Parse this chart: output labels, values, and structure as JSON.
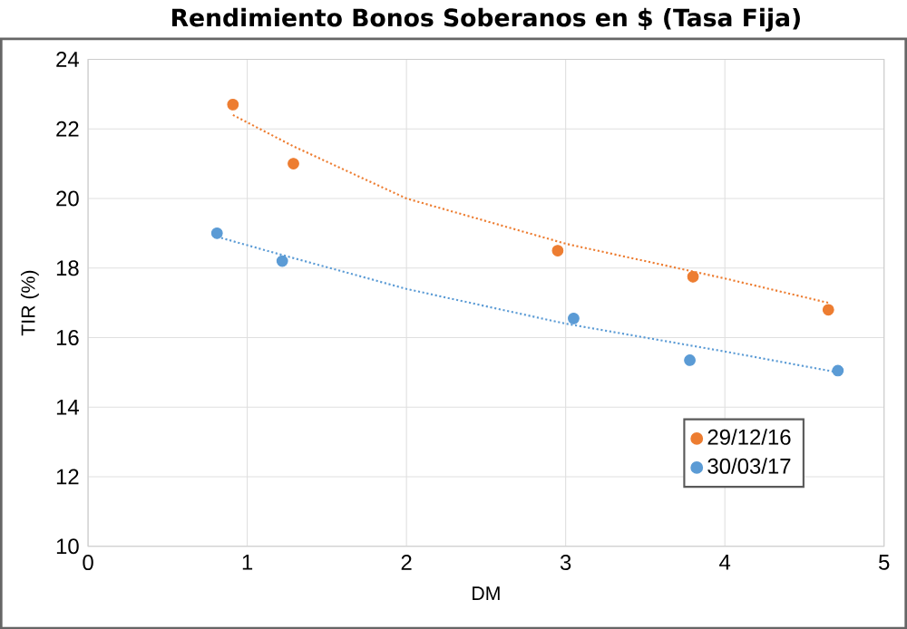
{
  "chart_data": {
    "type": "scatter",
    "title": "Rendimiento Bonos Soberanos en $ (Tasa Fija)",
    "xlabel": "DM",
    "ylabel": "TIR (%)",
    "xlim": [
      0,
      5
    ],
    "xticks": [
      0,
      1,
      2,
      3,
      4,
      5
    ],
    "ylim": [
      10,
      24
    ],
    "yticks": [
      10,
      12,
      14,
      16,
      18,
      20,
      22,
      24
    ],
    "grid": true,
    "legend": "bottom right",
    "marker": "circle",
    "series": [
      {
        "name": "29/12/16",
        "color": "#ed7d31",
        "x": [
          0.91,
          1.29,
          2.95,
          3.8,
          4.65
        ],
        "values": [
          22.7,
          21.0,
          18.5,
          17.75,
          16.8
        ]
      },
      {
        "name": "30/03/17",
        "color": "#5b9bd5",
        "x": [
          0.81,
          1.22,
          3.05,
          3.78,
          4.71
        ],
        "values": [
          19.0,
          18.2,
          16.55,
          15.35,
          15.05
        ]
      },
      {
        "type": "line",
        "color": "#ed7d31",
        "line_style": "dotted",
        "marker": "none",
        "x": [
          0.91,
          1.29,
          2.0,
          3.0,
          4.0,
          4.65
        ],
        "values": [
          22.4,
          21.5,
          20.0,
          18.7,
          17.7,
          17.0
        ]
      },
      {
        "type": "line",
        "color": "#5b9bd5",
        "line_style": "dotted",
        "marker": "none",
        "x": [
          0.81,
          1.2,
          2.0,
          3.0,
          4.0,
          4.71
        ],
        "values": [
          18.9,
          18.4,
          17.4,
          16.4,
          15.6,
          15.0
        ]
      }
    ]
  }
}
